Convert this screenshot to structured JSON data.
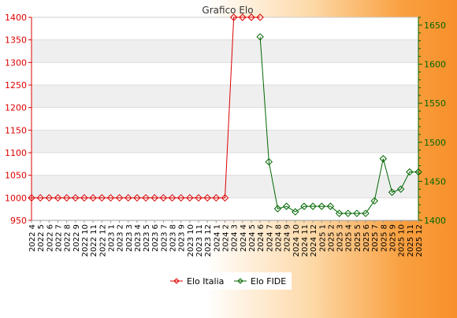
{
  "chart_data": {
    "type": "line",
    "title": "Grafico Elo",
    "categories": [
      "2022 4",
      "2022 5",
      "2022 6",
      "2022 7",
      "2022 8",
      "2022 9",
      "2022 10",
      "2022 11",
      "2022 12",
      "2023 1",
      "2023 2",
      "2023 3",
      "2023 4",
      "2023 5",
      "2023 6",
      "2023 7",
      "2023 8",
      "2023 9",
      "2023 10",
      "2023 11",
      "2023 12",
      "2024 1",
      "2024 2",
      "2024 3",
      "2024 4",
      "2024 5",
      "2024 6",
      "2024 7",
      "2024 8",
      "2024 9",
      "2024 10",
      "2024 11",
      "2024 12",
      "2025 1",
      "2025 2",
      "2025 3",
      "2025 4",
      "2025 5",
      "2025 6",
      "2025 7",
      "2025 8",
      "2025 9",
      "2025 10",
      "2025 11",
      "2025 12"
    ],
    "y_left": {
      "min": 950,
      "max": 1400,
      "ticks": [
        950,
        1000,
        1050,
        1100,
        1150,
        1200,
        1250,
        1300,
        1350,
        1400
      ],
      "color": "#dd0000"
    },
    "y_right": {
      "min": 1400,
      "max": 1660,
      "ticks": [
        1400,
        1450,
        1500,
        1550,
        1600,
        1650
      ],
      "color": "#006600"
    },
    "grid": true,
    "legend_position": "bottom",
    "series": [
      {
        "name": "Elo Italia",
        "axis": "left",
        "color": "#dd0000",
        "marker": "diamond",
        "values": [
          1000,
          1000,
          1000,
          1000,
          1000,
          1000,
          1000,
          1000,
          1000,
          1000,
          1000,
          1000,
          1000,
          1000,
          1000,
          1000,
          1000,
          1000,
          1000,
          1000,
          1000,
          1000,
          1000,
          1400,
          1400,
          1400,
          1400,
          null,
          null,
          null,
          null,
          null,
          null,
          null,
          null,
          null,
          null,
          null,
          null,
          null,
          null,
          null,
          null,
          null,
          null
        ]
      },
      {
        "name": "Elo FIDE",
        "axis": "right",
        "color": "#006600",
        "marker": "diamond",
        "values": [
          null,
          null,
          null,
          null,
          null,
          null,
          null,
          null,
          null,
          null,
          null,
          null,
          null,
          null,
          null,
          null,
          null,
          null,
          null,
          null,
          null,
          null,
          null,
          null,
          null,
          null,
          1635,
          1475,
          1415,
          1418,
          1411,
          1418,
          1418,
          1418,
          1418,
          1409,
          1409,
          1409,
          1409,
          1425,
          1479,
          1436,
          1440,
          1462,
          1462
        ]
      }
    ]
  }
}
